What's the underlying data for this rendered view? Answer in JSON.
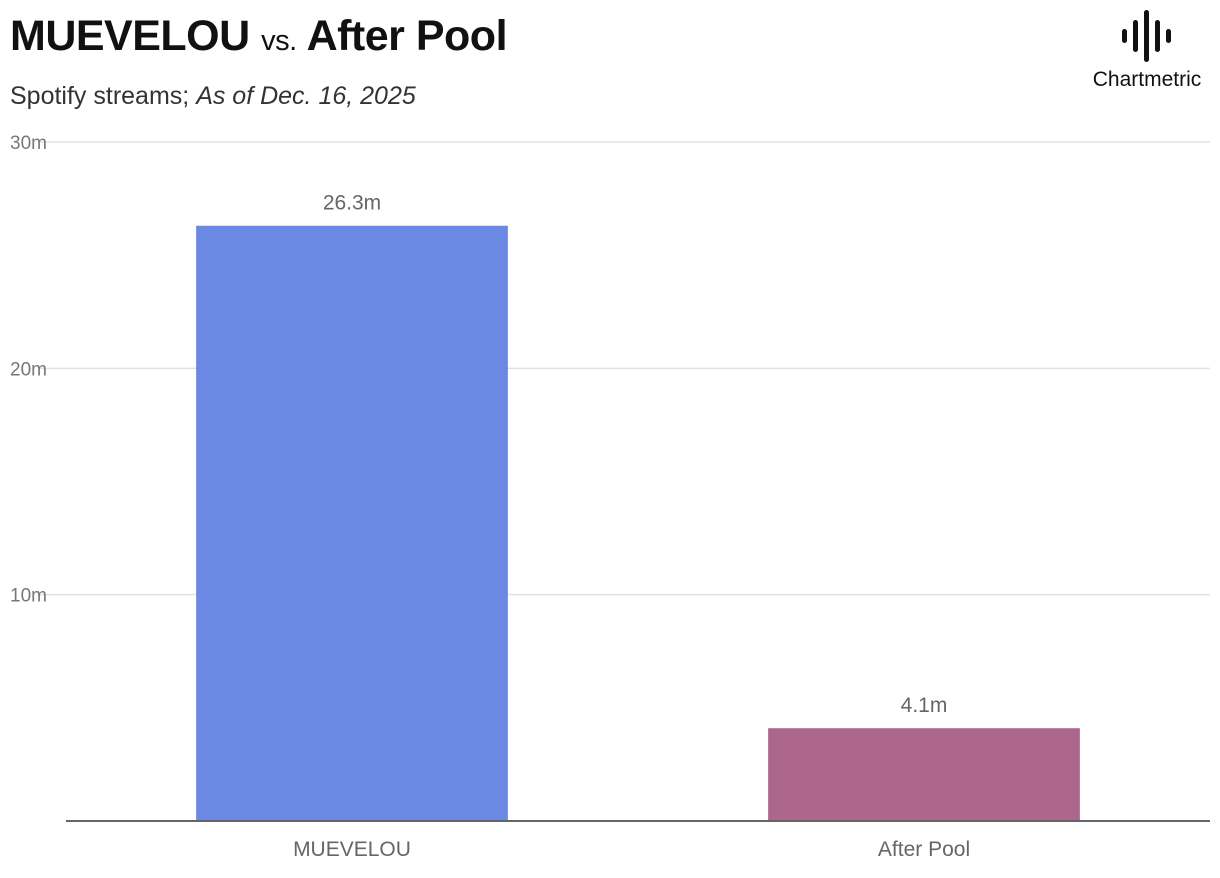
{
  "header": {
    "title_a": "MUEVELOU",
    "title_vs": "vs.",
    "title_b": "After Pool",
    "subtitle_prefix": "Spotify streams;",
    "subtitle_date": "As of Dec. 16, 2025"
  },
  "logo": {
    "text": "Chartmetric",
    "icon": "chartmetric-waveform-icon"
  },
  "chart_data": {
    "type": "bar",
    "categories": [
      "MUEVELOU",
      "After Pool"
    ],
    "values": [
      26.3,
      4.1
    ],
    "value_labels": [
      "26.3m",
      "4.1m"
    ],
    "colors": [
      "#6b88e2",
      "#ad668c"
    ],
    "ylim": [
      0,
      30
    ],
    "yticks": [
      10,
      20,
      30
    ],
    "ytick_labels": [
      "10m",
      "20m",
      "30m"
    ],
    "grid": true,
    "xlabel": "",
    "ylabel": ""
  }
}
